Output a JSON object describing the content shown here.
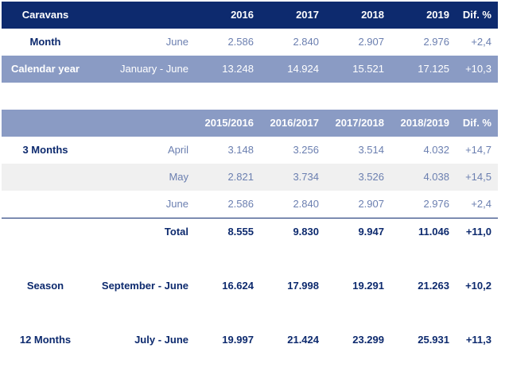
{
  "table1": {
    "header": [
      "Caravans",
      "",
      "2016",
      "2017",
      "2018",
      "2019",
      "Dif. %"
    ],
    "rows": [
      [
        "Month",
        "June",
        "2.586",
        "2.840",
        "2.907",
        "2.976",
        "+2,4"
      ],
      [
        "Calendar year",
        "January - June",
        "13.248",
        "14.924",
        "15.521",
        "17.125",
        "+10,3"
      ]
    ]
  },
  "table2": {
    "header": [
      "",
      "",
      "2015/2016",
      "2016/2017",
      "2017/2018",
      "2018/2019",
      "Dif. %"
    ],
    "rows": [
      [
        "3 Months",
        "April",
        "3.148",
        "3.256",
        "3.514",
        "4.032",
        "+14,7"
      ],
      [
        "",
        "May",
        "2.821",
        "3.734",
        "3.526",
        "4.038",
        "+14,5"
      ],
      [
        "",
        "June",
        "2.586",
        "2.840",
        "2.907",
        "2.976",
        "+2,4"
      ],
      [
        "",
        "Total",
        "8.555",
        "9.830",
        "9.947",
        "11.046",
        "+11,0"
      ],
      [
        "Season",
        "September - June",
        "16.624",
        "17.998",
        "19.291",
        "21.263",
        "+10,2"
      ],
      [
        "12 Months",
        "July - June",
        "19.997",
        "21.424",
        "23.299",
        "25.931",
        "+11,3"
      ]
    ]
  }
}
